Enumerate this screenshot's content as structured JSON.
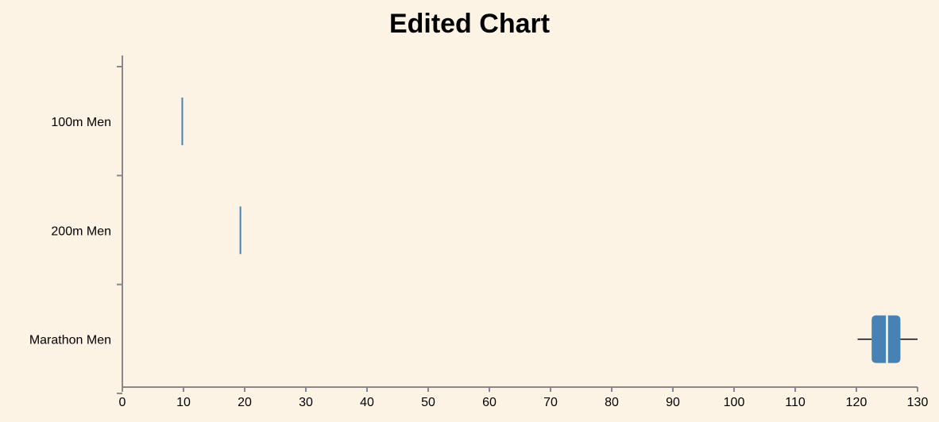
{
  "chart_data": {
    "type": "boxplot",
    "title": "Edited Chart",
    "xlabel": "",
    "ylabel": "",
    "xlim": [
      0,
      130
    ],
    "x_ticks": [
      0,
      10,
      20,
      30,
      40,
      50,
      60,
      70,
      80,
      90,
      100,
      110,
      120,
      130
    ],
    "categories": [
      "100m Men",
      "200m Men",
      "Marathon Men"
    ],
    "boxes": [
      {
        "category": "100m Men",
        "min": 9.8,
        "q1": 9.8,
        "median": 9.8,
        "q3": 9.8,
        "max": 9.8
      },
      {
        "category": "200m Men",
        "min": 19.3,
        "q1": 19.3,
        "median": 19.3,
        "q3": 19.3,
        "max": 19.3
      },
      {
        "category": "Marathon Men",
        "min": 120.2,
        "q1": 122.5,
        "median": 125.0,
        "q3": 127.2,
        "max": 130.0
      }
    ],
    "grid": false,
    "colors": {
      "box": "#4682b4",
      "median": "#ffffff",
      "whisker": "#000000",
      "background": "#fdf3e5"
    }
  }
}
